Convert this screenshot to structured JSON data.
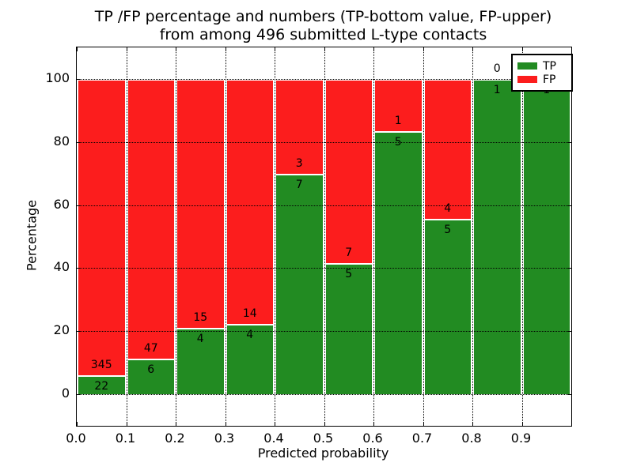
{
  "figure": {
    "title_line1": "TP /FP percentage and numbers (TP-bottom value, FP-upper)",
    "title_line2": "from among 496 submitted L-type contacts"
  },
  "chart_data": {
    "type": "bar",
    "stacked": true,
    "normalized_to_percent": true,
    "title": "TP /FP percentage and numbers (TP-bottom value, FP-upper) from among 496 submitted L-type contacts",
    "title_line1": "TP /FP percentage and numbers (TP-bottom value, FP-upper)",
    "title_line2": "from among 496 submitted L-type contacts",
    "xlabel": "Predicted probability",
    "ylabel": "Percentage",
    "total_contacts": 496,
    "bin_width": 0.1,
    "categories": [
      "0.0-0.1",
      "0.1-0.2",
      "0.2-0.3",
      "0.3-0.4",
      "0.4-0.5",
      "0.5-0.6",
      "0.6-0.7",
      "0.7-0.8",
      "0.8-0.9",
      "0.9-1.0"
    ],
    "bin_starts": [
      0.0,
      0.1,
      0.2,
      0.3,
      0.4,
      0.5,
      0.6,
      0.7,
      0.8,
      0.9
    ],
    "series": [
      {
        "name": "TP",
        "color": "#228B22",
        "counts": [
          22,
          6,
          4,
          4,
          7,
          5,
          5,
          5,
          1,
          1
        ]
      },
      {
        "name": "FP",
        "color": "#FC1D1D",
        "counts": [
          345,
          47,
          15,
          14,
          3,
          7,
          1,
          4,
          0,
          0
        ]
      }
    ],
    "tp_percent": [
      5.99,
      11.32,
      21.05,
      22.22,
      70.0,
      41.67,
      83.33,
      55.56,
      100.0,
      100.0
    ],
    "x_ticks": [
      {
        "label": "0.0",
        "value": 0.0
      },
      {
        "label": "0.1",
        "value": 0.1
      },
      {
        "label": "0.2",
        "value": 0.2
      },
      {
        "label": "0.3",
        "value": 0.3
      },
      {
        "label": "0.4",
        "value": 0.4
      },
      {
        "label": "0.5",
        "value": 0.5
      },
      {
        "label": "0.6",
        "value": 0.6
      },
      {
        "label": "0.7",
        "value": 0.7
      },
      {
        "label": "0.8",
        "value": 0.8
      },
      {
        "label": "0.9",
        "value": 0.9
      }
    ],
    "y_ticks": [
      {
        "label": "0",
        "value": 0
      },
      {
        "label": "20",
        "value": 20
      },
      {
        "label": "40",
        "value": 40
      },
      {
        "label": "60",
        "value": 60
      },
      {
        "label": "80",
        "value": 80
      },
      {
        "label": "100",
        "value": 100
      }
    ],
    "xlim": [
      0.0,
      1.0
    ],
    "ylim": [
      -10,
      110
    ],
    "grid": "dotted",
    "legend": {
      "position": "upper right",
      "entries": [
        "TP",
        "FP"
      ]
    }
  }
}
